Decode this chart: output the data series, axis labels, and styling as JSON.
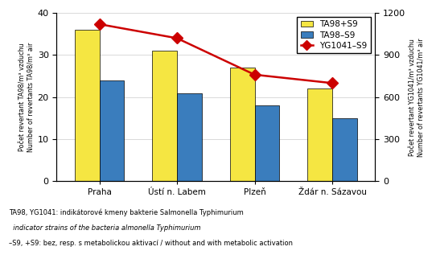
{
  "categories": [
    "Praha",
    "Ústí n. Labem",
    "Plzeň",
    "Ždár n. Sázavou"
  ],
  "ta98_plus_s9": [
    36,
    31,
    27,
    22
  ],
  "ta98_minus_s9": [
    24,
    21,
    18,
    15
  ],
  "yg1041_minus_s9": [
    1120,
    1020,
    760,
    700
  ],
  "bar_color_yellow": "#F5E642",
  "bar_color_blue": "#3A7DBD",
  "line_color_red": "#CC0000",
  "ylabel_left_line1": "Počet revertant TA98/m³ vzduchu",
  "ylabel_left_line2": "Number of revertants TA98/m³ air",
  "ylabel_right_line1": "Počet revertant YG1041/m³ vzduchu",
  "ylabel_right_line2": "Number of revertants YG1041/m³ air",
  "ylim_left": [
    0,
    40
  ],
  "ylim_right": [
    0,
    1200
  ],
  "yticks_left": [
    0,
    10,
    20,
    30,
    40
  ],
  "yticks_right": [
    0,
    300,
    600,
    900,
    1200
  ],
  "legend_ta98_plus": "TA98+S9",
  "legend_ta98_minus": "TA98–S9",
  "legend_yg1041": "YG1041–S9",
  "footnote1": "TA98, YG1041: indikátorové kmeny bakterie Salmonella Typhimurium",
  "footnote2": "indicator strains of the bacteria almonella Typhimurium",
  "footnote3": "–S9, +S9: bez, resp. s metabolickou aktivací / without and with metabolic activation",
  "background_color": "#ffffff",
  "bar_width": 0.32
}
